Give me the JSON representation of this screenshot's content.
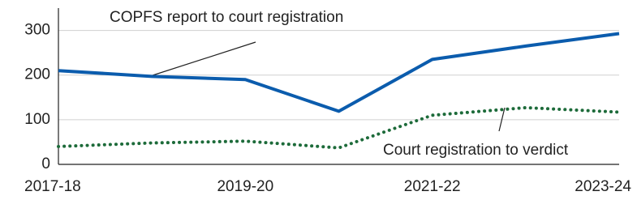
{
  "chart_data": {
    "type": "line",
    "categories": [
      "2017-18",
      null,
      "2019-20",
      null,
      "2021-22",
      null,
      "2023-24"
    ],
    "series": [
      {
        "name": "COPFS report to court registration",
        "color": "#0b5cad",
        "style": "solid",
        "values": [
          210,
          197,
          190,
          119,
          235,
          265,
          293
        ]
      },
      {
        "name": "Court registration to verdict",
        "color": "#1d6b3a",
        "style": "dotted",
        "values": [
          40,
          48,
          52,
          37,
          110,
          127,
          117
        ]
      }
    ],
    "ylim": [
      0,
      350
    ],
    "yticks": [
      0,
      100,
      200,
      300
    ],
    "grid": true
  }
}
